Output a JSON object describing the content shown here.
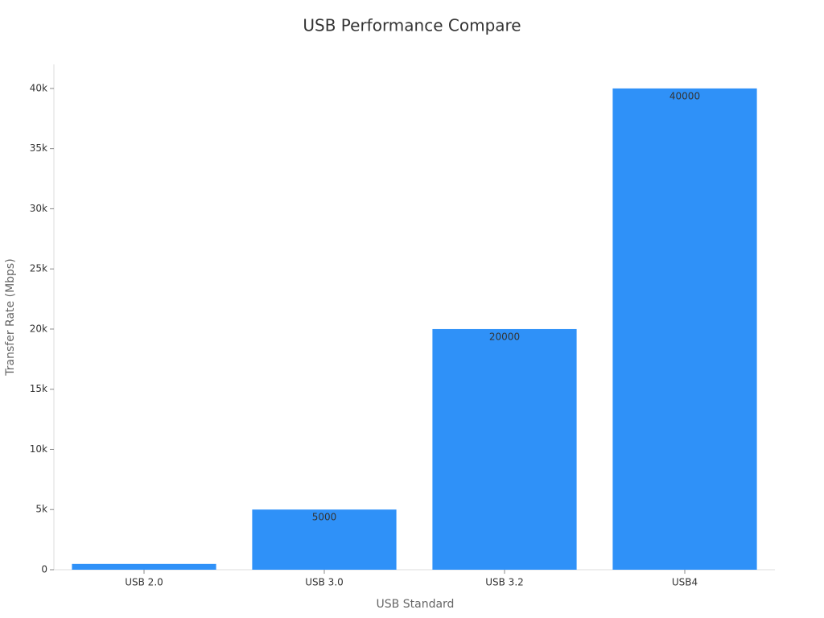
{
  "chart_data": {
    "type": "bar",
    "title": "USB Performance Compare",
    "x_label": "USB Standard",
    "y_label": "Transfer Rate (Mbps)",
    "categories": [
      "USB 2.0",
      "USB 3.0",
      "USB 3.2",
      "USB4"
    ],
    "values": [
      480,
      5000,
      20000,
      40000
    ],
    "value_labels": [
      null,
      "5000",
      "20000",
      "40000"
    ],
    "color": "#2f91f8",
    "ylim": [
      0,
      42000
    ],
    "yticks": [
      0,
      {
        "value": 5000,
        "label": "5k"
      },
      {
        "value": 10000,
        "label": "10k"
      },
      {
        "value": 15000,
        "label": "15k"
      },
      {
        "value": 20000,
        "label": "20k"
      },
      {
        "value": 25000,
        "label": "25k"
      },
      {
        "value": 30000,
        "label": "30k"
      },
      {
        "value": 35000,
        "label": "35k"
      },
      {
        "value": 40000,
        "label": "40k"
      }
    ],
    "grid": false
  }
}
